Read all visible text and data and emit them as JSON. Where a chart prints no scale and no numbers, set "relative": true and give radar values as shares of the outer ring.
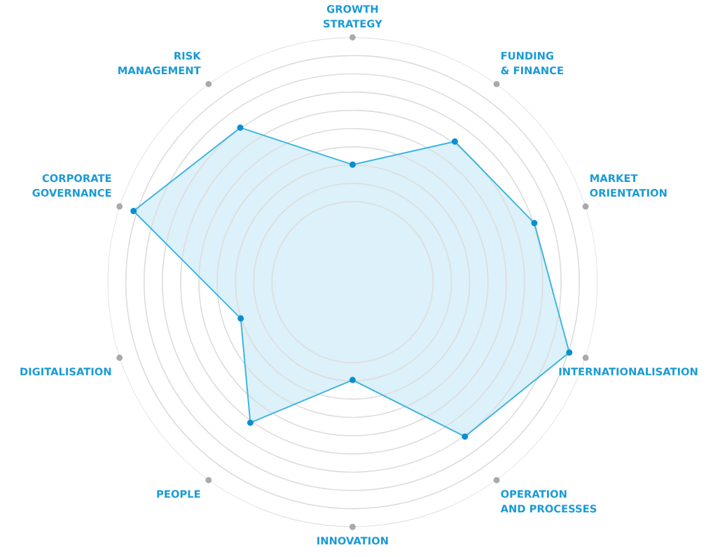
{
  "chart_data": {
    "type": "radar",
    "relative": true,
    "categories": [
      "GROWTH\nSTRATEGY",
      "FUNDING\n& FINANCE",
      "MARKET\nORIENTATION",
      "INTERNATIONALISATION",
      "OPERATION\nAND PROCESSES",
      "INNOVATION",
      "PEOPLE",
      "DIGITALISATION",
      "CORPORATE\nGOVERNANCE",
      "RISK\nMANAGEMENT"
    ],
    "series": [
      {
        "color": "#3bb4e0",
        "values": [
          0.48,
          0.71,
          0.78,
          0.93,
          0.78,
          0.4,
          0.71,
          0.48,
          0.94,
          0.78
        ]
      }
    ],
    "grid": true,
    "marker": "circle"
  }
}
